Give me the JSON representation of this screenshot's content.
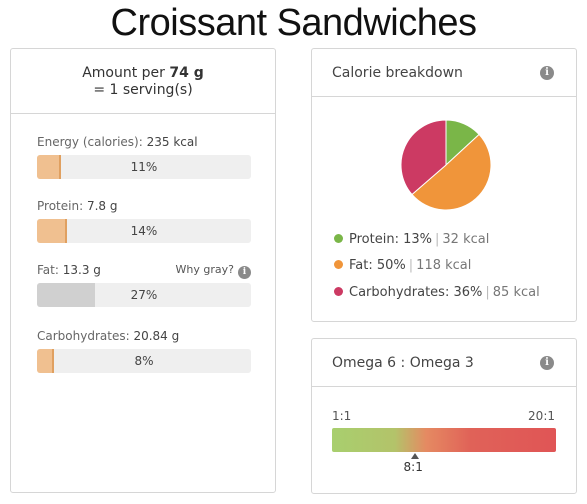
{
  "page": {
    "title": "Croissant Sandwiches"
  },
  "nutrition": {
    "amount_prefix": "Amount per",
    "amount_value": "74 g",
    "serving_line": "= 1 serving(s)",
    "nutrients": [
      {
        "label": "Energy (calories):",
        "value": "235 kcal",
        "percent_text": "11%",
        "fill_fraction": 0.11,
        "gray": false
      },
      {
        "label": "Protein:",
        "value": "7.8 g",
        "percent_text": "14%",
        "fill_fraction": 0.14,
        "gray": false
      },
      {
        "label": "Fat:",
        "value": "13.3 g",
        "percent_text": "27%",
        "fill_fraction": 0.27,
        "gray": true
      },
      {
        "label": "Carbohydrates:",
        "value": "20.84 g",
        "percent_text": "8%",
        "fill_fraction": 0.08,
        "gray": false
      }
    ],
    "why_gray": "Why gray?"
  },
  "calorie_breakdown": {
    "title": "Calorie breakdown",
    "items": [
      {
        "name": "Protein:",
        "percent": "13%",
        "kcal": "32 kcal",
        "color": "#7ab648",
        "value": 13
      },
      {
        "name": "Fat:",
        "percent": "50%",
        "kcal": "118 kcal",
        "color": "#f0953a",
        "value": 50
      },
      {
        "name": "Carbohydrates:",
        "percent": "36%",
        "kcal": "85 kcal",
        "color": "#cc3a63",
        "value": 36
      }
    ]
  },
  "omega": {
    "title": "Omega 6 : Omega 3",
    "min_label": "1:1",
    "max_label": "20:1",
    "value_label": "8:1",
    "value": 8,
    "min": 1,
    "max": 20
  },
  "icons": {
    "info": "info-icon"
  }
}
